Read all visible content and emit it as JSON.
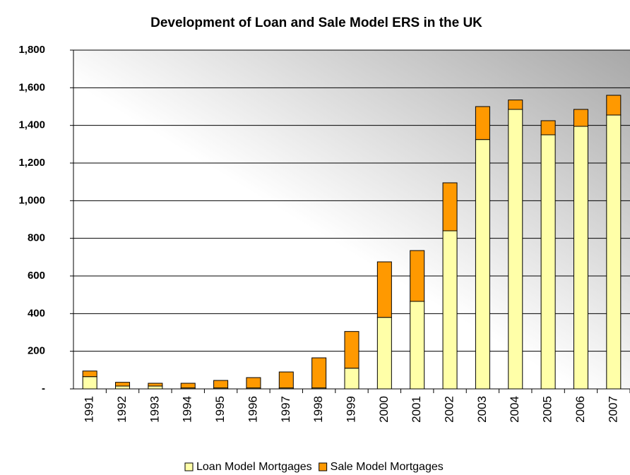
{
  "chart_data": {
    "type": "stacked_bar",
    "title": "Development of Loan and Sale Model ERS in the UK",
    "categories": [
      "1991",
      "1992",
      "1993",
      "1994",
      "1995",
      "1996",
      "1997",
      "1998",
      "1999",
      "2000",
      "2001",
      "2002",
      "2003",
      "2004",
      "2005",
      "2006",
      "2007"
    ],
    "series": [
      {
        "name": "Loan Model Mortgages",
        "color": "#ffffa8",
        "values": [
          65,
          15,
          15,
          5,
          5,
          5,
          5,
          5,
          110,
          380,
          465,
          840,
          1325,
          1485,
          1350,
          1395,
          1455
        ]
      },
      {
        "name": "Sale Model Mortgages",
        "color": "#ff9900",
        "values": [
          30,
          20,
          15,
          25,
          40,
          55,
          85,
          160,
          195,
          295,
          270,
          255,
          175,
          50,
          75,
          90,
          105
        ]
      }
    ],
    "ylim": [
      0,
      1800
    ],
    "yticks": [
      {
        "value": 0,
        "label": "-"
      },
      200,
      400,
      600,
      800,
      {
        "value": 1000,
        "label": "1,000"
      },
      {
        "value": 1200,
        "label": "1,200"
      },
      {
        "value": 1400,
        "label": "1,400"
      },
      {
        "value": 1600,
        "label": "1,600"
      },
      {
        "value": 1800,
        "label": "1,800"
      }
    ],
    "grid": true,
    "legend": "bottom"
  }
}
